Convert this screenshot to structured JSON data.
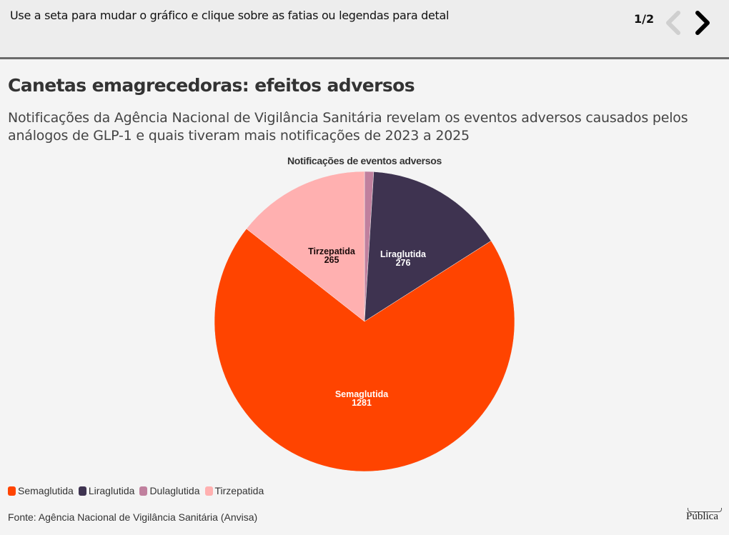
{
  "topbar": {
    "instruction": "Use a seta para mudar o gráfico e clique sobre as fatias ou legendas para detal",
    "pager": "1/2",
    "prev_icon": "chevron-left-icon",
    "next_icon": "chevron-right-icon"
  },
  "header": {
    "title": "Canetas emagrecedoras: efeitos adversos",
    "subtitle": "Notificações da Agência Nacional de Vigilância Sanitária revelam os eventos adversos causados pelos análogos de GLP-1 e quais tiveram mais notificações de 2023 a 2025"
  },
  "chart_data": {
    "type": "pie",
    "title": "Notificações de eventos adversos",
    "categories": [
      "Semaglutida",
      "Liraglutida",
      "Dulaglutida",
      "Tirzepatida"
    ],
    "values": [
      1281,
      276,
      18,
      265
    ],
    "colors": [
      "#ff4400",
      "#3e3350",
      "#c0809e",
      "#ffb0b0"
    ],
    "data_labels": {
      "Semaglutida": "1281",
      "Liraglutida": "276",
      "Tirzepatida": "265"
    },
    "legend_position": "bottom-left",
    "start_angle_order": [
      "Dulaglutida",
      "Liraglutida",
      "Semaglutida",
      "Tirzepatida"
    ]
  },
  "legend": {
    "items": [
      {
        "label": "Semaglutida",
        "color": "#ff4400"
      },
      {
        "label": "Liraglutida",
        "color": "#3e3350"
      },
      {
        "label": "Dulaglutida",
        "color": "#c0809e"
      },
      {
        "label": "Tirzepatida",
        "color": "#ffb0b0"
      }
    ]
  },
  "labels": {
    "semaglutida_name": "Semaglutida",
    "semaglutida_value": "1281",
    "liraglutida_name": "Liraglutida",
    "liraglutida_value": "276",
    "tirzepatida_name": "Tirzepatida",
    "tirzepatida_value": "265"
  },
  "footer": {
    "source": "Fonte: Agência Nacional de Vigilância Sanitária (Anvisa)",
    "logo": "Pública"
  }
}
